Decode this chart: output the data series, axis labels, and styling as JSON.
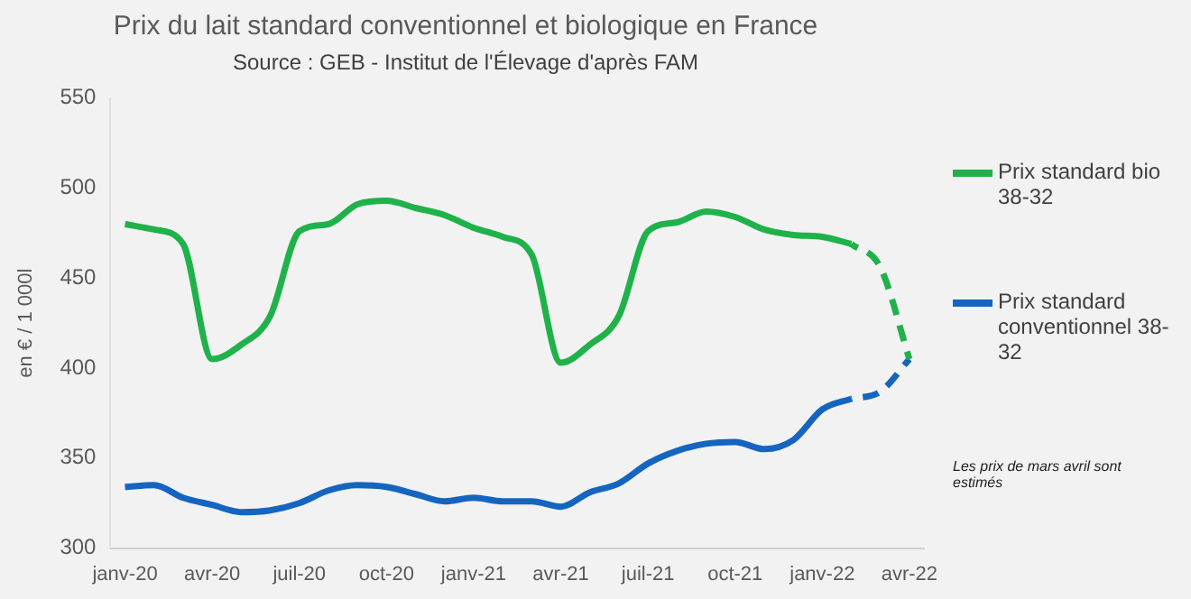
{
  "chart_data": {
    "type": "line",
    "title": "Prix du lait standard conventionnel et biologique en France",
    "subtitle": "Source : GEB - Institut de l'Élevage d'après FAM",
    "ylabel": "en € / 1 000l",
    "categories": [
      "janv-20",
      null,
      null,
      "avr-20",
      null,
      null,
      "juil-20",
      null,
      null,
      "oct-20",
      null,
      null,
      "janv-21",
      null,
      null,
      "avr-21",
      null,
      null,
      "juil-21",
      null,
      null,
      "oct-21",
      null,
      null,
      "janv-22",
      null,
      null,
      "avr-22"
    ],
    "series": [
      {
        "name": "Prix standard bio 38-32",
        "color": "#1fb24a",
        "line_style": "solid",
        "values": [
          480,
          477,
          469,
          405,
          413,
          429,
          476,
          480,
          491,
          493,
          489,
          485,
          478,
          473,
          463,
          403,
          413,
          429,
          476,
          481,
          487,
          484,
          477,
          474,
          473,
          469,
          null,
          null
        ]
      },
      {
        "name": "Prix standard conventionnel 38-32",
        "color": "#1565c0",
        "line_style": "solid",
        "values": [
          334,
          335,
          328,
          324,
          320,
          321,
          325,
          332,
          335,
          334,
          330,
          326,
          328,
          326,
          326,
          323,
          331,
          336,
          347,
          354,
          358,
          359,
          355,
          360,
          377,
          383,
          null,
          null
        ]
      },
      {
        "color": "#1fb24a",
        "line_style": "dashed",
        "values": [
          null,
          null,
          null,
          null,
          null,
          null,
          null,
          null,
          null,
          null,
          null,
          null,
          null,
          null,
          null,
          null,
          null,
          null,
          null,
          null,
          null,
          null,
          null,
          null,
          null,
          469,
          456,
          405
        ]
      },
      {
        "color": "#1565c0",
        "line_style": "dashed",
        "values": [
          null,
          null,
          null,
          null,
          null,
          null,
          null,
          null,
          null,
          null,
          null,
          null,
          null,
          null,
          null,
          null,
          null,
          null,
          null,
          null,
          null,
          null,
          null,
          null,
          null,
          383,
          387,
          405
        ]
      }
    ],
    "ylim": [
      300,
      550
    ],
    "yticks": [
      300,
      350,
      400,
      450,
      500,
      550
    ],
    "grid": false,
    "legend": "right",
    "marker": "none",
    "annotations": [
      "Les prix de mars avril sont estimés"
    ]
  }
}
